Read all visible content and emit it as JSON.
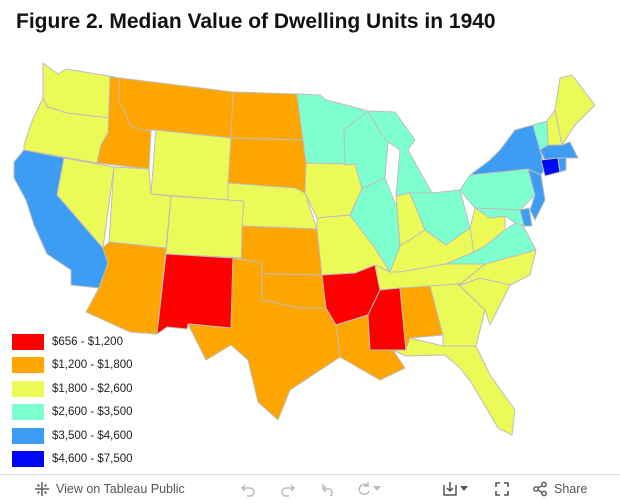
{
  "title": "Figure 2. Median Value of Dwelling Units in 1940",
  "legend": {
    "items": [
      {
        "label": "$656 - $1,200",
        "color": "#ff0000"
      },
      {
        "label": "$1,200 - $1,800",
        "color": "#ffa500"
      },
      {
        "label": "$1,800 - $2,600",
        "color": "#ecfa58"
      },
      {
        "label": "$2,600 - $3,500",
        "color": "#7dffd0"
      },
      {
        "label": "$3,500 - $4,600",
        "color": "#3d9cf3"
      },
      {
        "label": "$4,600 - $7,500",
        "color": "#0008f5"
      }
    ]
  },
  "map_data": {
    "regions": [
      {
        "name": "WA",
        "category": 2
      },
      {
        "name": "OR",
        "category": 2
      },
      {
        "name": "CA",
        "category": 4
      },
      {
        "name": "ID",
        "category": 1
      },
      {
        "name": "NV",
        "category": 2
      },
      {
        "name": "MT",
        "category": 1
      },
      {
        "name": "WY",
        "category": 2
      },
      {
        "name": "UT",
        "category": 2
      },
      {
        "name": "AZ",
        "category": 1
      },
      {
        "name": "CO",
        "category": 2
      },
      {
        "name": "NM",
        "category": 0
      },
      {
        "name": "ND",
        "category": 1
      },
      {
        "name": "SD",
        "category": 1
      },
      {
        "name": "NE",
        "category": 2
      },
      {
        "name": "KS",
        "category": 1
      },
      {
        "name": "OK",
        "category": 1
      },
      {
        "name": "TX",
        "category": 1
      },
      {
        "name": "MN",
        "category": 3
      },
      {
        "name": "IA",
        "category": 2
      },
      {
        "name": "MO",
        "category": 2
      },
      {
        "name": "AR",
        "category": 0
      },
      {
        "name": "LA",
        "category": 1
      },
      {
        "name": "WI",
        "category": 3
      },
      {
        "name": "IL",
        "category": 3
      },
      {
        "name": "MI",
        "category": 3
      },
      {
        "name": "IN",
        "category": 2
      },
      {
        "name": "OH",
        "category": 3
      },
      {
        "name": "KY",
        "category": 2
      },
      {
        "name": "TN",
        "category": 2
      },
      {
        "name": "MS",
        "category": 0
      },
      {
        "name": "AL",
        "category": 1
      },
      {
        "name": "GA",
        "category": 2
      },
      {
        "name": "FL",
        "category": 2
      },
      {
        "name": "SC",
        "category": 2
      },
      {
        "name": "NC",
        "category": 2
      },
      {
        "name": "VA",
        "category": 3
      },
      {
        "name": "WV",
        "category": 2
      },
      {
        "name": "PA",
        "category": 3
      },
      {
        "name": "NY",
        "category": 4
      },
      {
        "name": "VT",
        "category": 3
      },
      {
        "name": "NH",
        "category": 2
      },
      {
        "name": "ME",
        "category": 2
      },
      {
        "name": "MA",
        "category": 4
      },
      {
        "name": "RI",
        "category": 4
      },
      {
        "name": "CT",
        "category": 5
      },
      {
        "name": "NJ",
        "category": 4
      },
      {
        "name": "DE",
        "category": 4
      },
      {
        "name": "MD",
        "category": 3
      }
    ]
  },
  "toolbar": {
    "view_label": "View on Tableau Public",
    "share_label": "Share"
  },
  "icons": {
    "tableau": "tableau-logo-icon",
    "undo": "undo-icon",
    "redo": "redo-icon",
    "revert": "revert-icon",
    "refresh": "refresh-icon",
    "download": "download-icon",
    "fullscreen": "fullscreen-icon",
    "share": "share-icon"
  }
}
